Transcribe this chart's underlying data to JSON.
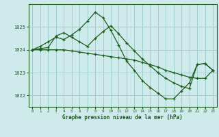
{
  "title": "Graphe pression niveau de la mer (hPa)",
  "background_color": "#ceeaea",
  "grid_color": "#9ecece",
  "line_color": "#1a5c1a",
  "xlim": [
    -0.5,
    23.5
  ],
  "ylim": [
    1021.5,
    1026.0
  ],
  "yticks": [
    1022,
    1023,
    1024,
    1025
  ],
  "xticks": [
    0,
    1,
    2,
    3,
    4,
    5,
    6,
    7,
    8,
    9,
    10,
    11,
    12,
    13,
    14,
    15,
    16,
    17,
    18,
    19,
    20,
    21,
    22,
    23
  ],
  "series": [
    {
      "x": [
        0,
        1,
        2,
        3,
        4,
        5,
        6,
        7,
        8,
        9,
        10,
        11,
        12,
        13,
        14,
        15,
        16,
        17,
        18,
        19,
        20,
        21,
        22,
        23
      ],
      "y": [
        1024.0,
        1024.15,
        1024.35,
        1024.55,
        1024.45,
        1024.65,
        1024.9,
        1025.25,
        1025.65,
        1025.4,
        1024.85,
        1024.2,
        1023.5,
        1023.1,
        1022.65,
        1022.35,
        1022.1,
        1021.85,
        1021.85,
        1022.2,
        1022.55,
        1023.35,
        1023.4,
        1023.1
      ]
    },
    {
      "x": [
        0,
        1,
        2,
        3,
        4,
        5,
        6,
        7,
        8,
        9,
        10,
        11,
        12,
        13,
        14,
        15,
        16,
        17,
        18,
        19,
        20,
        21,
        22,
        23
      ],
      "y": [
        1024.0,
        1024.05,
        1024.1,
        1024.6,
        1024.75,
        1024.55,
        1024.35,
        1024.15,
        1024.5,
        1024.8,
        1025.05,
        1024.7,
        1024.3,
        1023.95,
        1023.6,
        1023.3,
        1023.0,
        1022.75,
        1022.55,
        1022.4,
        1022.3,
        1023.35,
        1023.4,
        1023.1
      ]
    },
    {
      "x": [
        0,
        1,
        2,
        3,
        4,
        5,
        6,
        7,
        8,
        9,
        10,
        11,
        12,
        13,
        14,
        15,
        16,
        17,
        18,
        19,
        20,
        21,
        22,
        23
      ],
      "y": [
        1024.0,
        1024.0,
        1024.0,
        1024.0,
        1024.0,
        1023.95,
        1023.9,
        1023.85,
        1023.8,
        1023.75,
        1023.7,
        1023.65,
        1023.6,
        1023.55,
        1023.45,
        1023.35,
        1023.25,
        1023.1,
        1023.0,
        1022.9,
        1022.8,
        1022.75,
        1022.75,
        1023.1
      ]
    }
  ]
}
